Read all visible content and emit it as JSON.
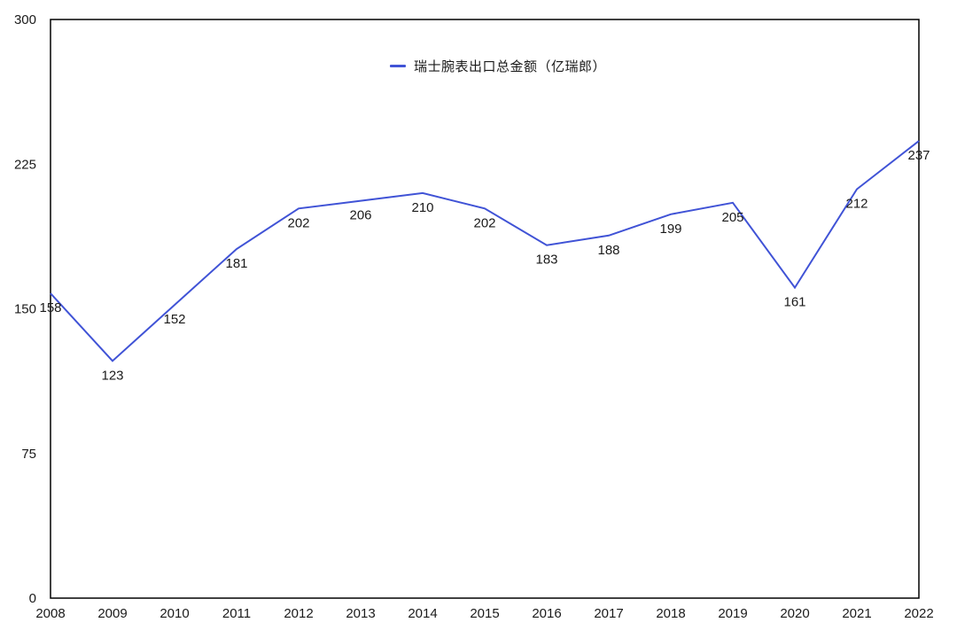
{
  "chart_data": {
    "type": "line",
    "title": "",
    "categories": [
      "2008",
      "2009",
      "2010",
      "2011",
      "2012",
      "2013",
      "2014",
      "2015",
      "2016",
      "2017",
      "2018",
      "2019",
      "2020",
      "2021",
      "2022"
    ],
    "series": [
      {
        "name": "瑞士腕表出口总金额（亿瑞郎）",
        "values": [
          158,
          123,
          152,
          181,
          202,
          206,
          210,
          202,
          183,
          188,
          199,
          205,
          161,
          212,
          237
        ],
        "color": "#4053D6"
      }
    ],
    "ylim": [
      0,
      300
    ],
    "yticks": [
      0,
      75,
      150,
      225,
      300
    ],
    "grid": false,
    "data_labels": true,
    "legend_position": "top-center",
    "axis_color": "#000000",
    "text_color": "#1a1a1a",
    "background_color": "#ffffff"
  }
}
